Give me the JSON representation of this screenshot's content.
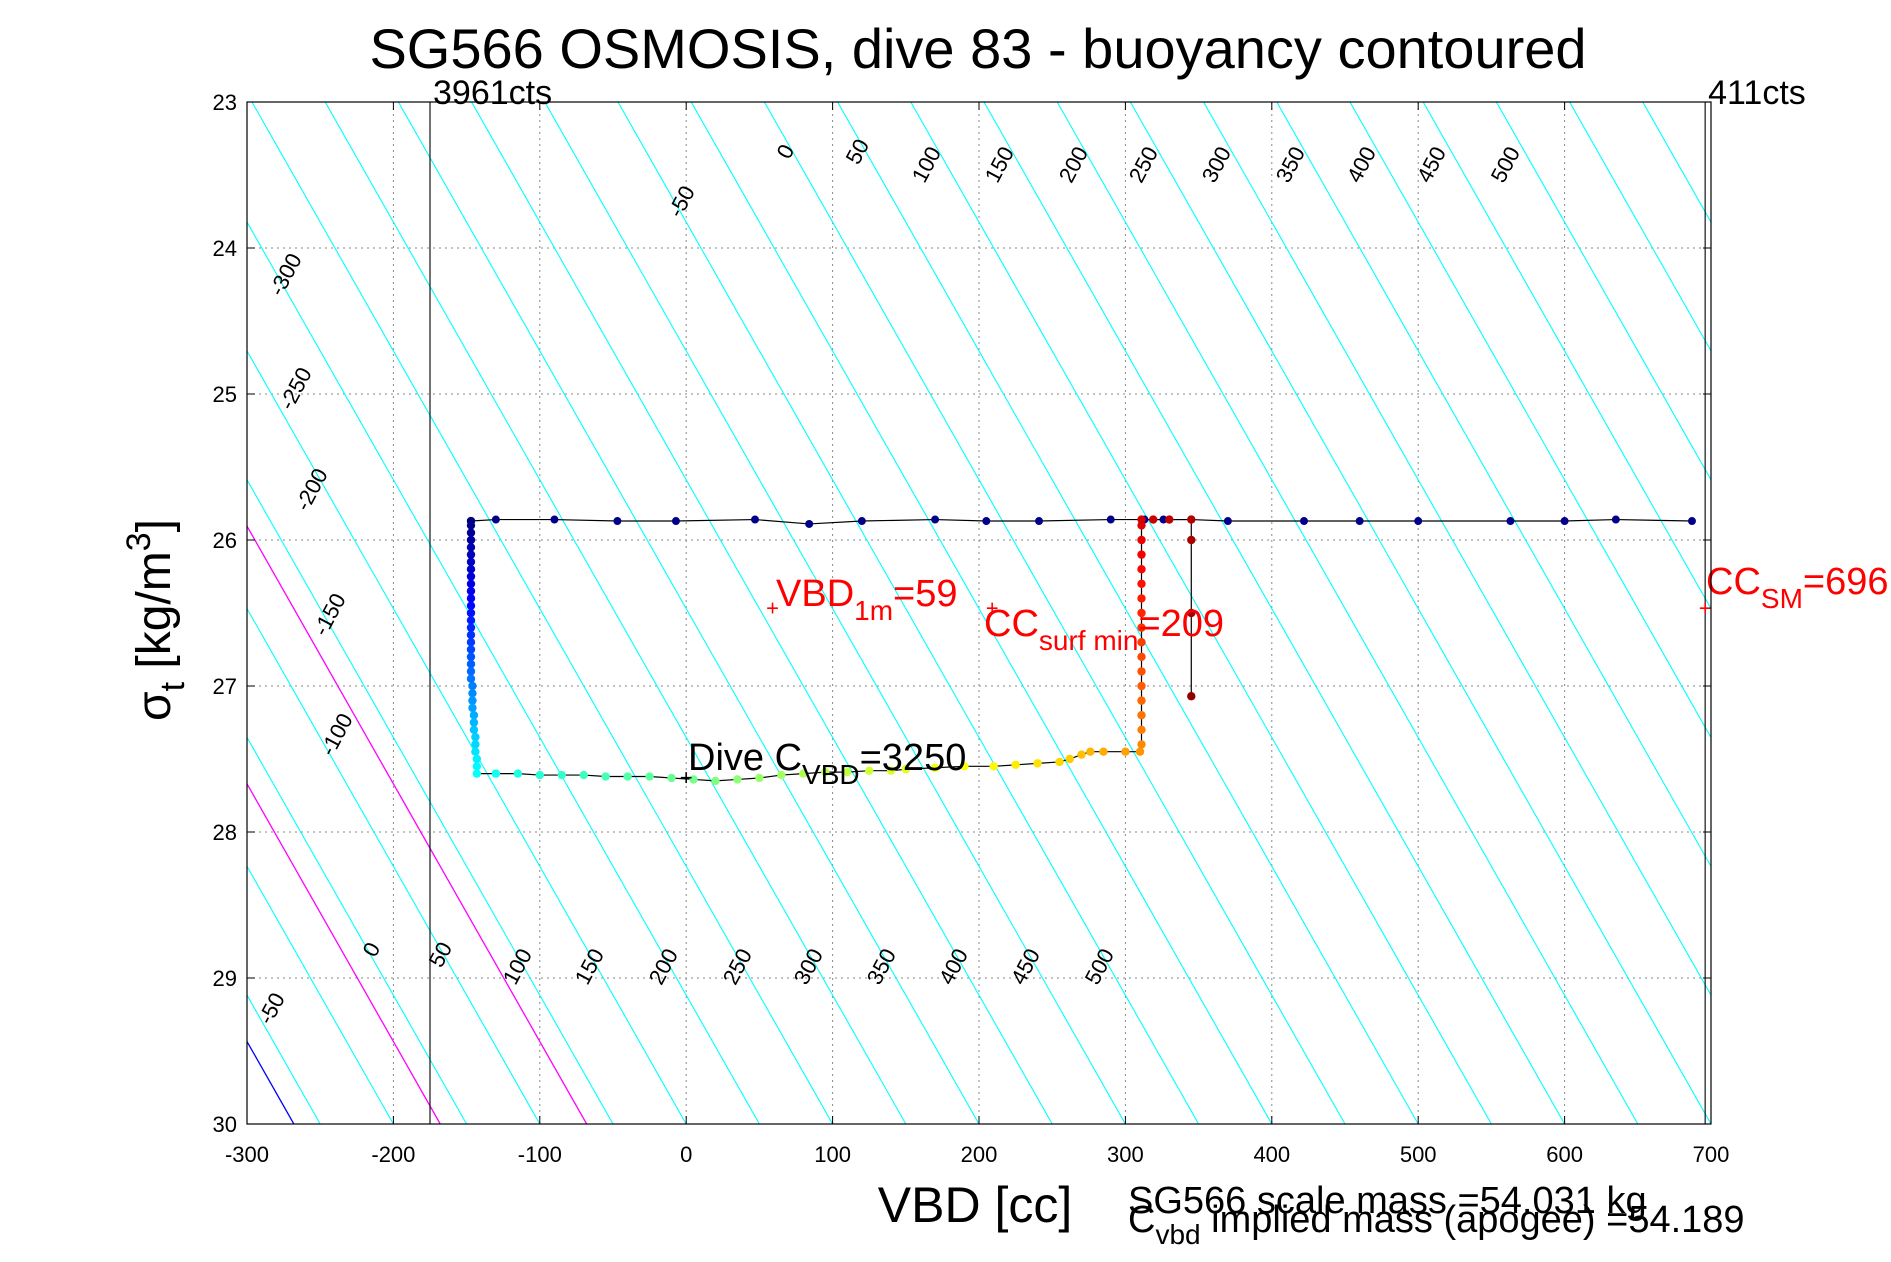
{
  "chart_data": {
    "type": "scatter",
    "title": "SG566 OSMOSIS, dive 83 - buoyancy contoured",
    "xlabel": "VBD [cc]",
    "ylabel_main": "σ",
    "ylabel_sub": "t",
    "ylabel_unit": " [kg/m",
    "ylabel_sup": "3",
    "ylabel_close": "]",
    "xlim": [
      -300,
      700
    ],
    "ylim": [
      23,
      30
    ],
    "y_reversed": true,
    "grid": true,
    "x_ticks": [
      -300,
      -200,
      -100,
      0,
      100,
      200,
      300,
      400,
      500,
      600,
      700
    ],
    "x_tick_labels": [
      "-300",
      "-200",
      "-100",
      "0",
      "100",
      "200",
      "300",
      "400",
      "500",
      "600",
      "700"
    ],
    "y_ticks": [
      23,
      24,
      25,
      26,
      27,
      28,
      29,
      30
    ],
    "y_tick_labels": [
      "23",
      "24",
      "25",
      "26",
      "27",
      "28",
      "29",
      "30"
    ],
    "vertical_markers": [
      {
        "x": -175,
        "label": "3961cts"
      },
      {
        "x": 696,
        "label": "411cts"
      }
    ],
    "contours": {
      "slope_sigma_per_cc": 0.01765,
      "x_at_sigma30": [
        -400,
        -350,
        -300,
        -250,
        -200,
        -150,
        -100,
        -50,
        0,
        50,
        100,
        150,
        200,
        250,
        300,
        350,
        400,
        450,
        500,
        550,
        600,
        650,
        700,
        750,
        800,
        850,
        900,
        950,
        1000,
        1050,
        1100
      ],
      "colors": {
        "zero": "#0000ff",
        "highlight": "#ff00ff",
        "other": "#00ffff"
      },
      "zero_offset": -268,
      "highlight_offsets": [
        -168,
        -68
      ],
      "labels_top_values": [
        "-300",
        "-250",
        "-200",
        "-150",
        "-100",
        "-50",
        "0",
        "50",
        "100",
        "150",
        "200",
        "250",
        "300",
        "350",
        "400",
        "450",
        "500"
      ],
      "labels_bottom_values": [
        "-50",
        "0",
        "50",
        "100",
        "150",
        "200",
        "250",
        "300",
        "350",
        "400",
        "450",
        "500"
      ]
    },
    "series": [
      {
        "role": "track",
        "points": [
          [
            -147,
            25.87
          ],
          [
            -130,
            25.86
          ],
          [
            -90,
            25.86
          ],
          [
            -47,
            25.87
          ],
          [
            -7,
            25.87
          ],
          [
            47,
            25.86
          ],
          [
            84,
            25.89
          ],
          [
            120,
            25.87
          ],
          [
            170,
            25.86
          ],
          [
            205,
            25.87
          ],
          [
            241,
            25.87
          ],
          [
            290,
            25.86
          ],
          [
            313,
            25.86
          ],
          [
            326,
            25.86
          ],
          [
            345,
            25.86
          ],
          [
            370,
            25.87
          ],
          [
            422,
            25.87
          ],
          [
            460,
            25.87
          ],
          [
            500,
            25.87
          ],
          [
            563,
            25.87
          ],
          [
            600,
            25.87
          ],
          [
            635,
            25.86
          ],
          [
            687,
            25.87
          ]
        ],
        "color": "#000000"
      },
      {
        "role": "dive_colored",
        "points": [
          [
            -147,
            25.87
          ],
          [
            -147,
            25.9
          ],
          [
            -147,
            25.95
          ],
          [
            -147,
            26.0
          ],
          [
            -147,
            26.05
          ],
          [
            -147,
            26.1
          ],
          [
            -147,
            26.15
          ],
          [
            -147,
            26.2
          ],
          [
            -147,
            26.25
          ],
          [
            -147,
            26.3
          ],
          [
            -147,
            26.35
          ],
          [
            -147,
            26.4
          ],
          [
            -147,
            26.45
          ],
          [
            -147,
            26.5
          ],
          [
            -147,
            26.55
          ],
          [
            -147,
            26.6
          ],
          [
            -147,
            26.65
          ],
          [
            -147,
            26.7
          ],
          [
            -147,
            26.75
          ],
          [
            -147,
            26.8
          ],
          [
            -147,
            26.85
          ],
          [
            -147,
            26.9
          ],
          [
            -147,
            26.95
          ],
          [
            -146,
            27.0
          ],
          [
            -146,
            27.05
          ],
          [
            -146,
            27.1
          ],
          [
            -146,
            27.15
          ],
          [
            -145,
            27.2
          ],
          [
            -145,
            27.25
          ],
          [
            -145,
            27.3
          ],
          [
            -144,
            27.35
          ],
          [
            -144,
            27.4
          ],
          [
            -144,
            27.45
          ],
          [
            -143,
            27.5
          ],
          [
            -143,
            27.55
          ],
          [
            -143,
            27.6
          ],
          [
            -130,
            27.6
          ],
          [
            -115,
            27.6
          ],
          [
            -100,
            27.61
          ],
          [
            -85,
            27.61
          ],
          [
            -70,
            27.61
          ],
          [
            -55,
            27.62
          ],
          [
            -40,
            27.62
          ],
          [
            -25,
            27.62
          ],
          [
            -10,
            27.63
          ],
          [
            5,
            27.64
          ],
          [
            20,
            27.65
          ],
          [
            35,
            27.64
          ],
          [
            50,
            27.63
          ],
          [
            65,
            27.61
          ],
          [
            80,
            27.6
          ],
          [
            95,
            27.59
          ],
          [
            110,
            27.59
          ],
          [
            125,
            27.58
          ],
          [
            140,
            27.58
          ],
          [
            150,
            27.57
          ],
          [
            170,
            27.56
          ],
          [
            190,
            27.55
          ],
          [
            210,
            27.55
          ],
          [
            225,
            27.54
          ],
          [
            240,
            27.53
          ],
          [
            255,
            27.52
          ],
          [
            262,
            27.5
          ],
          [
            270,
            27.47
          ],
          [
            276,
            27.45
          ],
          [
            285,
            27.45
          ],
          [
            300,
            27.45
          ],
          [
            310,
            27.45
          ],
          [
            311,
            27.4
          ],
          [
            311,
            27.3
          ],
          [
            311,
            27.2
          ],
          [
            311,
            27.1
          ],
          [
            311,
            27.0
          ],
          [
            311,
            26.9
          ],
          [
            311,
            26.8
          ],
          [
            311,
            26.7
          ],
          [
            311,
            26.6
          ],
          [
            311,
            26.5
          ],
          [
            311,
            26.4
          ],
          [
            311,
            26.3
          ],
          [
            311,
            26.2
          ],
          [
            311,
            26.1
          ],
          [
            311,
            26.0
          ],
          [
            311,
            25.9
          ],
          [
            311,
            25.86
          ],
          [
            319,
            25.86
          ],
          [
            330,
            25.86
          ],
          [
            345,
            25.86
          ],
          [
            345,
            26.0
          ],
          [
            345,
            26.5
          ],
          [
            345,
            27.07
          ]
        ]
      }
    ],
    "annotations": [
      {
        "text": "VBD",
        "sub": "1m",
        "tail": "=59",
        "x": 59,
        "y": 26.47,
        "color": "#ff0000"
      },
      {
        "text": "CC",
        "sub": "surf min",
        "tail": "=209",
        "x": 209,
        "y": 26.47,
        "color": "#ff0000"
      },
      {
        "text": "CC",
        "sub": "SM",
        "tail": "=696",
        "x": 696,
        "y": 26.47,
        "color": "#ff0000"
      },
      {
        "text": "Dive C",
        "sub": "VBD",
        "tail": "=3250",
        "x": 0,
        "y": 27.63,
        "color": "#000000"
      }
    ],
    "footer": {
      "line1": "SG566 scale mass =54.031 kg",
      "line2_main": "C",
      "line2_sub": "vbd",
      "line2_tail": " implied mass (apogee) =54.189"
    }
  }
}
